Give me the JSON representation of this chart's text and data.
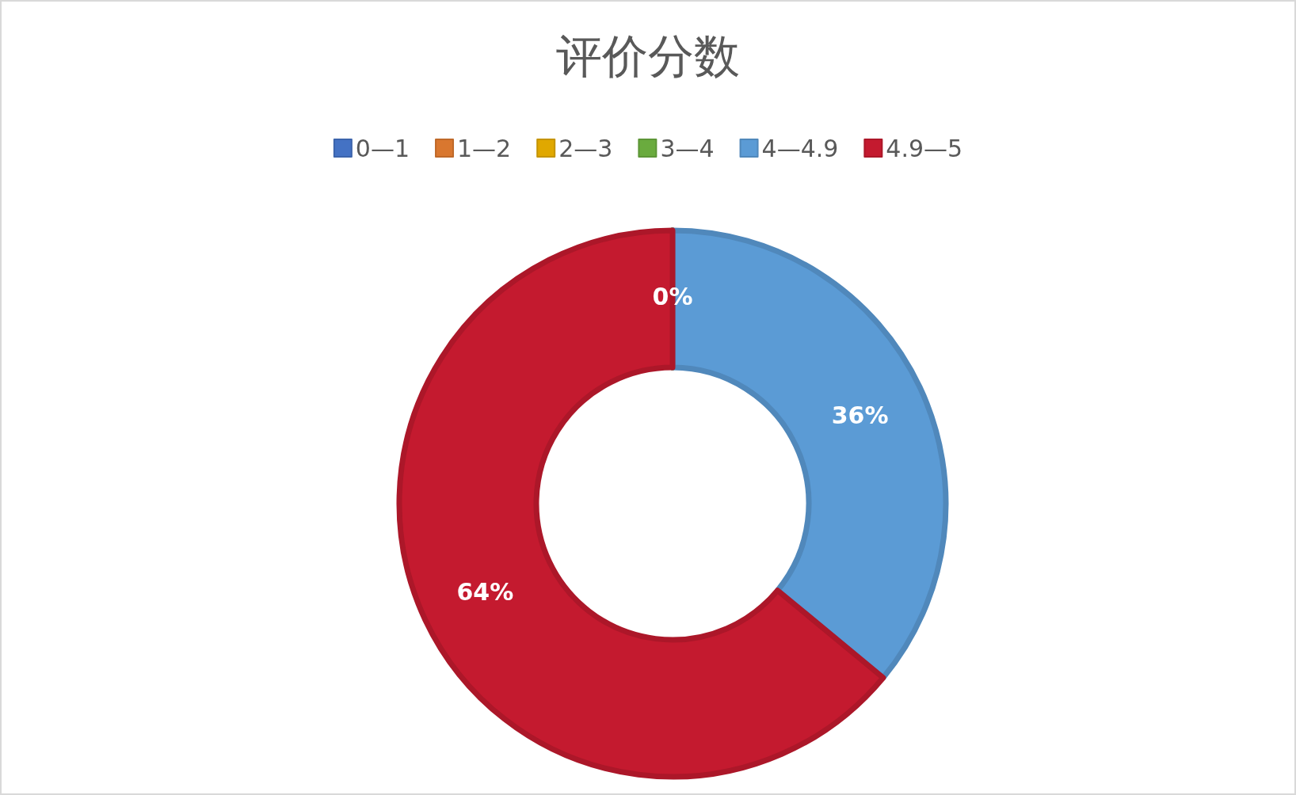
{
  "chart_data": {
    "type": "donut",
    "title": "评价分数",
    "categories": [
      "0—1",
      "1—2",
      "2—3",
      "3—4",
      "4—4.9",
      "4.9—5"
    ],
    "values": [
      0,
      0,
      0,
      0,
      36,
      64
    ],
    "value_labels": [
      null,
      null,
      null,
      "0%",
      "36%",
      "64%"
    ],
    "colors": [
      "#4472c4",
      "#d9772f",
      "#e0a800",
      "#6aab3e",
      "#5b9bd5",
      "#c41a2f"
    ],
    "legend": "top"
  }
}
